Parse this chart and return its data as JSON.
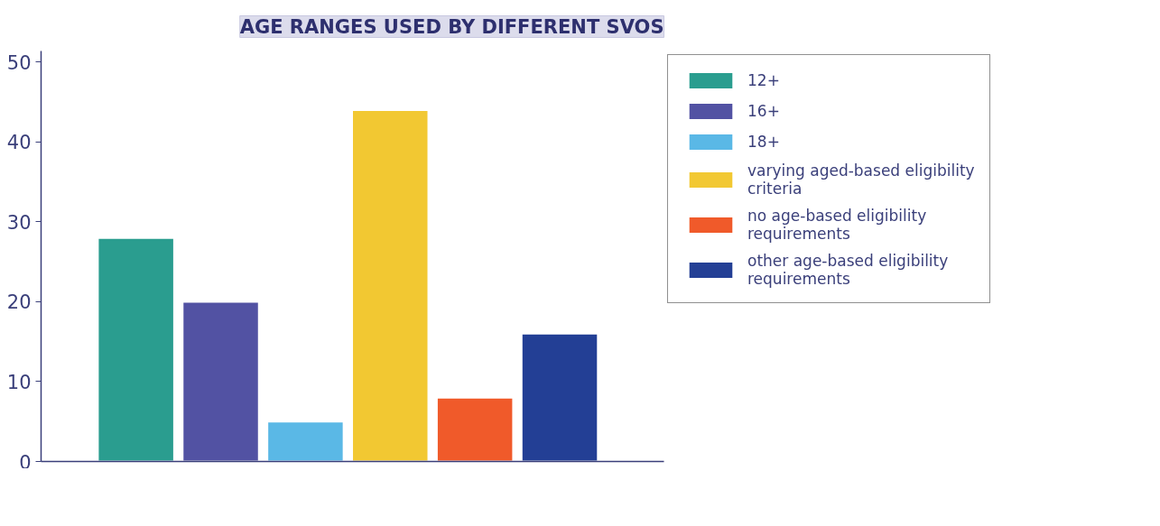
{
  "chart_data": {
    "type": "bar",
    "title": "AGE RANGES USED BY DIFFERENT SVOS",
    "categories": [
      null
    ],
    "series": [
      {
        "name": "12+",
        "color": "#2a9d8f",
        "values": [
          28
        ]
      },
      {
        "name": "16+",
        "color": "#5252a3",
        "values": [
          20
        ]
      },
      {
        "name": "18+",
        "color": "#5ab8e6",
        "values": [
          5
        ]
      },
      {
        "name": "varying aged-based eligibility criteria",
        "color": "#f2c832",
        "values": [
          44
        ]
      },
      {
        "name": "no age-based eligibility requirements",
        "color": "#f05a2a",
        "values": [
          8
        ]
      },
      {
        "name": "other age-based eligibility requirements",
        "color": "#233f95",
        "values": [
          16
        ]
      }
    ],
    "ylim": [
      0,
      51.4
    ],
    "yticks": [
      0,
      10,
      20,
      30,
      40,
      50
    ],
    "grid": false,
    "legend": "right"
  }
}
